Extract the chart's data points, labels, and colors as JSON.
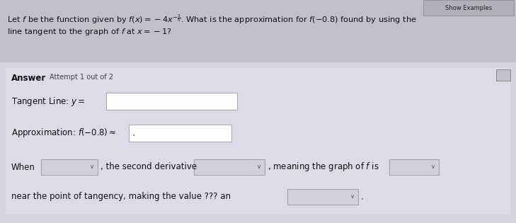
{
  "bg_top": "#c8c8c8",
  "bg_bottom": "#d8d8e8",
  "title_line1": "Let $f$ be the function given by $f(x) = -4x^{-\\frac{3}{5}}$. What is the approximation for $f(-0.8)$ found by using the",
  "title_line2": "line tangent to the graph of $f$ at $x = -1$?",
  "answer_label": "Answer",
  "attempt_label": "Attempt 1 out of 2",
  "tangent_label": "Tangent Line: $y =$",
  "approx_label": "Approximation: $f(-0.8) \\approx$",
  "when_label": "When",
  "second_deriv_text": ", the second derivative",
  "meaning_text": ", meaning the graph of $f$ is",
  "near_text": "near the point of tangency, making the value ??? an",
  "show_examples_text": "Show Examples",
  "text_color": "#111111",
  "white_box_color": "#ffffff",
  "white_box_border": "#aaaaaa",
  "dropdown_bg": "#d0d0d8",
  "dropdown_border": "#999999",
  "icon_bg": "#c0c0c8",
  "show_ex_bg": "#b0b0b8",
  "show_ex_border": "#888888"
}
